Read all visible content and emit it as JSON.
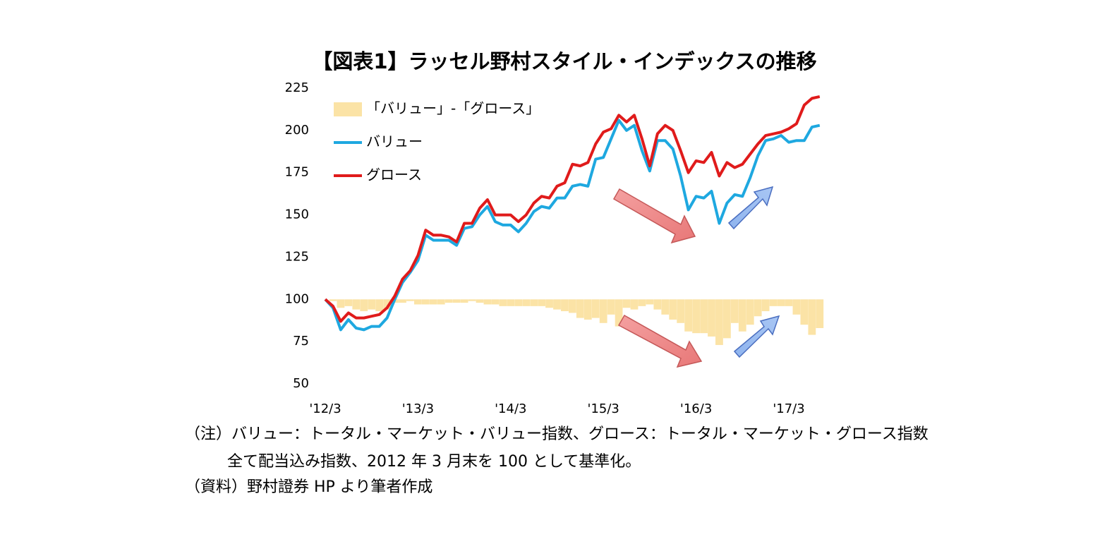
{
  "chart_data": {
    "type": "line",
    "title": "【図表1】ラッセル野村スタイル・インデックスの推移",
    "categories": [
      "'12/3",
      null,
      null,
      null,
      null,
      null,
      null,
      null,
      null,
      null,
      null,
      null,
      "'13/3",
      null,
      null,
      null,
      null,
      null,
      null,
      null,
      null,
      null,
      null,
      null,
      "'14/3",
      null,
      null,
      null,
      null,
      null,
      null,
      null,
      null,
      null,
      null,
      null,
      "'15/3",
      null,
      null,
      null,
      null,
      null,
      null,
      null,
      null,
      null,
      null,
      null,
      "'16/3",
      null,
      null,
      null,
      null,
      null,
      null,
      null,
      null,
      null,
      null,
      null,
      "'17/3",
      null,
      null,
      null,
      null
    ],
    "bar_base": 100,
    "series": [
      {
        "name": "「バリュー」-「グロース」",
        "type": "bar",
        "color": "#fbe3a6",
        "values": [
          100,
          99,
          95,
          96,
          94,
          93,
          94,
          93,
          94,
          98,
          98,
          99,
          97,
          97,
          97,
          97,
          98,
          98,
          98,
          99,
          98,
          97,
          97,
          96,
          96,
          96,
          96,
          96,
          96,
          95,
          94,
          93,
          92,
          89,
          88,
          89,
          86,
          91,
          84,
          95,
          94,
          96,
          97,
          94,
          91,
          88,
          86,
          81,
          80,
          80,
          78,
          73,
          77,
          86,
          81,
          85,
          90,
          93,
          96,
          96,
          96,
          91,
          85,
          79,
          83
        ]
      },
      {
        "name": "バリュー",
        "type": "line",
        "color": "#1ea8e0",
        "values": [
          100,
          95,
          82,
          88,
          83,
          82,
          84,
          84,
          89,
          100,
          110,
          116,
          123,
          138,
          135,
          135,
          135,
          132,
          142,
          143,
          150,
          155,
          146,
          144,
          144,
          140,
          145,
          152,
          155,
          154,
          160,
          160,
          167,
          168,
          167,
          183,
          184,
          195,
          206,
          200,
          203,
          188,
          176,
          194,
          194,
          189,
          173,
          153,
          161,
          160,
          164,
          145,
          157,
          162,
          161,
          172,
          185,
          194,
          195,
          197,
          193,
          194,
          194,
          202,
          203
        ]
      },
      {
        "name": "グロース",
        "type": "line",
        "color": "#e01b1b",
        "values": [
          100,
          96,
          87,
          92,
          89,
          89,
          90,
          91,
          95,
          102,
          112,
          117,
          126,
          141,
          138,
          138,
          137,
          134,
          145,
          145,
          154,
          159,
          150,
          150,
          150,
          146,
          150,
          157,
          161,
          160,
          167,
          169,
          180,
          179,
          181,
          192,
          199,
          201,
          209,
          205,
          209,
          195,
          179,
          198,
          203,
          200,
          188,
          175,
          182,
          181,
          187,
          173,
          181,
          178,
          180,
          186,
          192,
          197,
          198,
          199,
          201,
          204,
          215,
          219,
          220
        ]
      }
    ],
    "ylim": [
      50,
      225
    ],
    "yticks": [
      50,
      75,
      100,
      125,
      150,
      175,
      200,
      225
    ],
    "legend": "upper left",
    "notes": [
      "（注）バリュー：トータル・マーケット・バリュー指数、グロース：トータル・マーケット・グロース指数",
      "全て配当込み指数、2012 年 3 月末を 100 として基準化。",
      "（資料）野村證券 HP より筆者作成"
    ]
  }
}
